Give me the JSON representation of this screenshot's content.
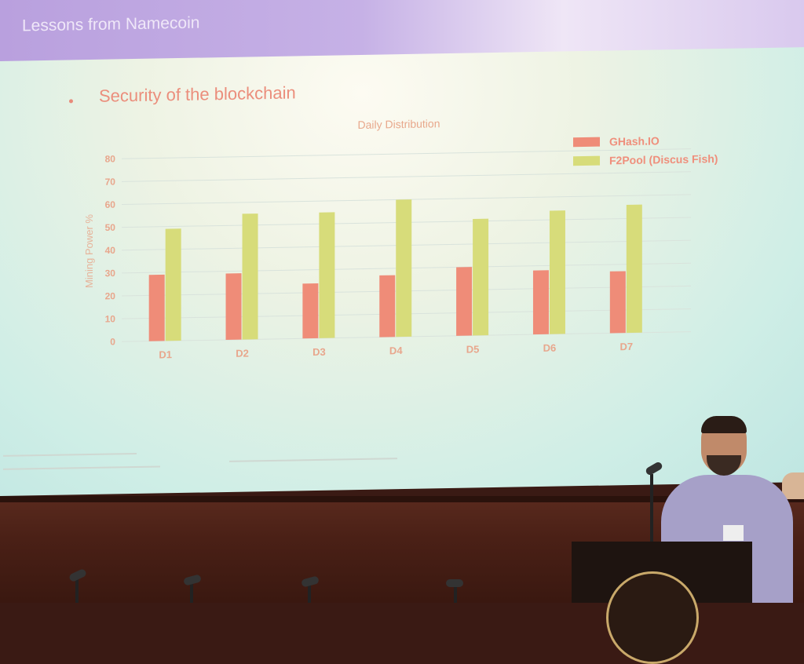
{
  "slide": {
    "title": "Lessons from Namecoin",
    "bullet": "Security of the blockchain"
  },
  "colors": {
    "ghash": "#ef8c78",
    "f2pool": "#d7dc7a",
    "text_accent": "#eb8e7c"
  },
  "chart_data": {
    "type": "bar",
    "title": "Daily Distribution",
    "xlabel": "",
    "ylabel": "Mining Power %",
    "categories": [
      "D1",
      "D2",
      "D3",
      "D4",
      "D5",
      "D6",
      "D7"
    ],
    "series": [
      {
        "name": "GHash.IO",
        "values": [
          29,
          29,
          24,
          27,
          30,
          28,
          27
        ]
      },
      {
        "name": "F2Pool (Discus Fish)",
        "values": [
          49,
          55,
          55,
          60,
          51,
          54,
          56
        ]
      }
    ],
    "yticks": [
      0,
      10,
      20,
      30,
      40,
      50,
      60,
      70,
      80
    ],
    "ylim": [
      0,
      80
    ],
    "grid": true,
    "legend": "top-right"
  }
}
